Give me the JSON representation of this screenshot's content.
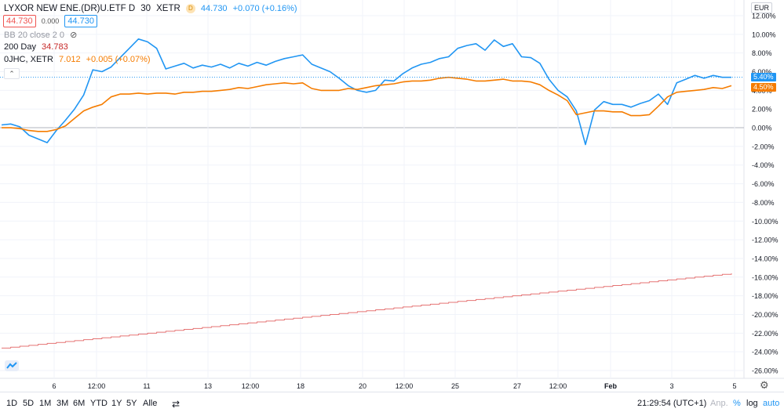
{
  "legend": {
    "symbol": "LYXOR NEW ENE.(DR)U.ETF D",
    "interval": "30",
    "exchange": "XETR",
    "badge": "D",
    "last": "44.730",
    "change": "+0.070 (+0.16%)",
    "bid": "44.730",
    "spread": "0.000",
    "ask": "44.730",
    "bb_label": "BB 20 close 2 0",
    "ma_label": "200 Day",
    "ma_value": "34.783",
    "compare_symbol": "0JHC, XETR",
    "compare_last": "7.012",
    "compare_change": "+0.005 (+0.07%)"
  },
  "currency": "EUR",
  "price_tags": {
    "main": "5.40%",
    "compare": "4.50%"
  },
  "colors": {
    "main": "#2196f3",
    "compare": "#f57c00",
    "ma": "#e57373",
    "down": "#ef5350",
    "grid": "#f0f3fa",
    "zero": "#b2b5be"
  },
  "bottom": {
    "ranges": [
      "1D",
      "5D",
      "1M",
      "3M",
      "6M",
      "YTD",
      "1Y",
      "5Y",
      "Alle"
    ],
    "time": "21:29:54 (UTC+1)",
    "adj": "Anp.",
    "pct": "%",
    "log": "log",
    "auto": "auto"
  },
  "chart_data": {
    "type": "line",
    "y_unit": "%",
    "ylim": [
      -27,
      13
    ],
    "y_ticks": [
      "12.00%",
      "10.00%",
      "8.00%",
      "6.00%",
      "4.00%",
      "2.00%",
      "0.00%",
      "-2.00%",
      "-4.00%",
      "-6.00%",
      "-8.00%",
      "-10.00%",
      "-12.00%",
      "-14.00%",
      "-16.00%",
      "-18.00%",
      "-20.00%",
      "-22.00%",
      "-24.00%",
      "-26.00%"
    ],
    "x_ticks": [
      "6",
      "12:00",
      "11",
      "13",
      "12:00",
      "18",
      "20",
      "12:00",
      "25",
      "27",
      "12:00",
      "Feb",
      "3",
      "5"
    ],
    "x": [
      0,
      1,
      2,
      3,
      4,
      5,
      6,
      7,
      8,
      9,
      10,
      11,
      12,
      13,
      14,
      15,
      16,
      17,
      18,
      19,
      20,
      21,
      22,
      23,
      24,
      25,
      26,
      27,
      28,
      29,
      30,
      31,
      32,
      33,
      34,
      35,
      36,
      37,
      38,
      39,
      40,
      41,
      42,
      43,
      44,
      45,
      46,
      47,
      48,
      49,
      50,
      51,
      52,
      53,
      54,
      55,
      56,
      57,
      58,
      59,
      60,
      61,
      62,
      63,
      64,
      65,
      66,
      67,
      68,
      69,
      70,
      71,
      72,
      73,
      74,
      75,
      76,
      77,
      78,
      79,
      80
    ],
    "series": [
      {
        "values": [
          0.3,
          0.4,
          0.1,
          -0.8,
          -1.2,
          -1.6,
          -0.3,
          0.8,
          2.0,
          3.5,
          6.2,
          6.0,
          6.5,
          7.5,
          8.5,
          9.5,
          9.2,
          8.5,
          6.3,
          6.6,
          6.9,
          6.4,
          6.7,
          6.5,
          6.8,
          6.4,
          6.9,
          6.6,
          7.0,
          6.7,
          7.1,
          7.4,
          7.6,
          7.8,
          6.8,
          6.4,
          6.0,
          5.3,
          4.5,
          4.0,
          3.8,
          4.0,
          5.1,
          5.0,
          5.8,
          6.4,
          6.8,
          7.0,
          7.4,
          7.6,
          8.5,
          8.8,
          9.0,
          8.3,
          9.4,
          8.7,
          9.0,
          7.6,
          7.5,
          6.9,
          5.2,
          4.0,
          3.3,
          1.8,
          -1.8,
          1.9,
          2.8,
          2.5,
          2.5,
          2.2,
          2.6,
          2.9,
          3.6,
          2.5,
          4.8,
          5.2,
          5.6,
          5.3,
          5.6,
          5.4,
          5.4
        ]
      },
      {
        "values": [
          0.0,
          0.0,
          -0.1,
          -0.3,
          -0.4,
          -0.4,
          -0.2,
          0.2,
          1.0,
          1.8,
          2.2,
          2.5,
          3.3,
          3.6,
          3.6,
          3.7,
          3.6,
          3.7,
          3.7,
          3.6,
          3.8,
          3.8,
          3.9,
          3.9,
          4.0,
          4.1,
          4.3,
          4.2,
          4.4,
          4.6,
          4.7,
          4.8,
          4.7,
          4.8,
          4.2,
          4.0,
          4.0,
          4.0,
          4.2,
          4.1,
          4.3,
          4.5,
          4.6,
          4.7,
          4.9,
          5.0,
          5.0,
          5.1,
          5.3,
          5.4,
          5.3,
          5.2,
          5.0,
          5.0,
          5.1,
          5.2,
          5.0,
          5.0,
          4.9,
          4.6,
          4.0,
          3.5,
          2.9,
          1.4,
          1.6,
          1.8,
          1.8,
          1.7,
          1.7,
          1.3,
          1.3,
          1.4,
          2.3,
          3.3,
          3.8,
          3.9,
          4.0,
          4.1,
          4.3,
          4.2,
          4.5
        ]
      },
      {
        "values": [
          -23.6,
          -23.5,
          -23.4,
          -23.3,
          -23.2,
          -23.1,
          -23.0,
          -22.9,
          -22.8,
          -22.7,
          -22.6,
          -22.5,
          -22.4,
          -22.3,
          -22.2,
          -22.1,
          -22.0,
          -21.9,
          -21.8,
          -21.7,
          -21.6,
          -21.5,
          -21.4,
          -21.3,
          -21.2,
          -21.1,
          -21.0,
          -20.9,
          -20.8,
          -20.7,
          -20.6,
          -20.5,
          -20.4,
          -20.3,
          -20.2,
          -20.1,
          -20.0,
          -19.9,
          -19.8,
          -19.7,
          -19.6,
          -19.5,
          -19.4,
          -19.3,
          -19.2,
          -19.1,
          -19.0,
          -18.9,
          -18.8,
          -18.7,
          -18.6,
          -18.5,
          -18.4,
          -18.3,
          -18.2,
          -18.1,
          -18.0,
          -17.9,
          -17.8,
          -17.7,
          -17.6,
          -17.5,
          -17.4,
          -17.3,
          -17.2,
          -17.1,
          -17.0,
          -16.9,
          -16.8,
          -16.7,
          -16.6,
          -16.5,
          -16.4,
          -16.3,
          -16.2,
          -16.1,
          -16.0,
          -15.9,
          -15.8,
          -15.7,
          -15.6
        ]
      }
    ]
  }
}
